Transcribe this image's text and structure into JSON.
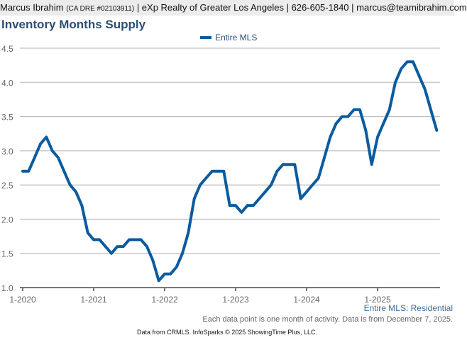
{
  "header": {
    "name": "Marcus Ibrahim",
    "license": "(CA DRE #02103911)",
    "rest": "| eXp Realty of Greater Los Angeles | 626-605-1840 | marcus@teamibrahim.com"
  },
  "chart_data": {
    "type": "line",
    "title": "Inventory Months Supply",
    "xlabel": "",
    "ylabel": "",
    "ylim": [
      1.0,
      4.5
    ],
    "yticks": [
      "1.0",
      "1.5",
      "2.0",
      "2.5",
      "3.0",
      "3.5",
      "4.0",
      "4.5"
    ],
    "xticks": [
      "1-2020",
      "1-2021",
      "1-2022",
      "1-2023",
      "1-2024",
      "1-2025"
    ],
    "grid": true,
    "legend_placement": "top-center",
    "x_start": "2020-01",
    "x_interval": "month",
    "series": [
      {
        "name": "Entire MLS",
        "color": "#0a5ba0",
        "values": [
          2.7,
          2.7,
          2.9,
          3.1,
          3.2,
          3.0,
          2.9,
          2.7,
          2.5,
          2.4,
          2.2,
          1.8,
          1.7,
          1.7,
          1.6,
          1.5,
          1.6,
          1.6,
          1.7,
          1.7,
          1.7,
          1.6,
          1.4,
          1.1,
          1.2,
          1.2,
          1.3,
          1.5,
          1.8,
          2.3,
          2.5,
          2.6,
          2.7,
          2.7,
          2.7,
          2.2,
          2.2,
          2.1,
          2.2,
          2.2,
          2.3,
          2.4,
          2.5,
          2.7,
          2.8,
          2.8,
          2.8,
          2.3,
          2.4,
          2.5,
          2.6,
          2.9,
          3.2,
          3.4,
          3.5,
          3.5,
          3.6,
          3.6,
          3.3,
          2.8,
          3.2,
          3.4,
          3.6,
          4.0,
          4.2,
          4.3,
          4.3,
          4.1,
          3.9,
          3.6,
          3.3
        ]
      }
    ]
  },
  "source_label": "Entire MLS: Residential",
  "note": "Each data point is one month of activity. Data is from December 7, 2025.",
  "footer": "Data from CRMLS. InfoSparks © 2025 ShowingTime Plus, LLC."
}
